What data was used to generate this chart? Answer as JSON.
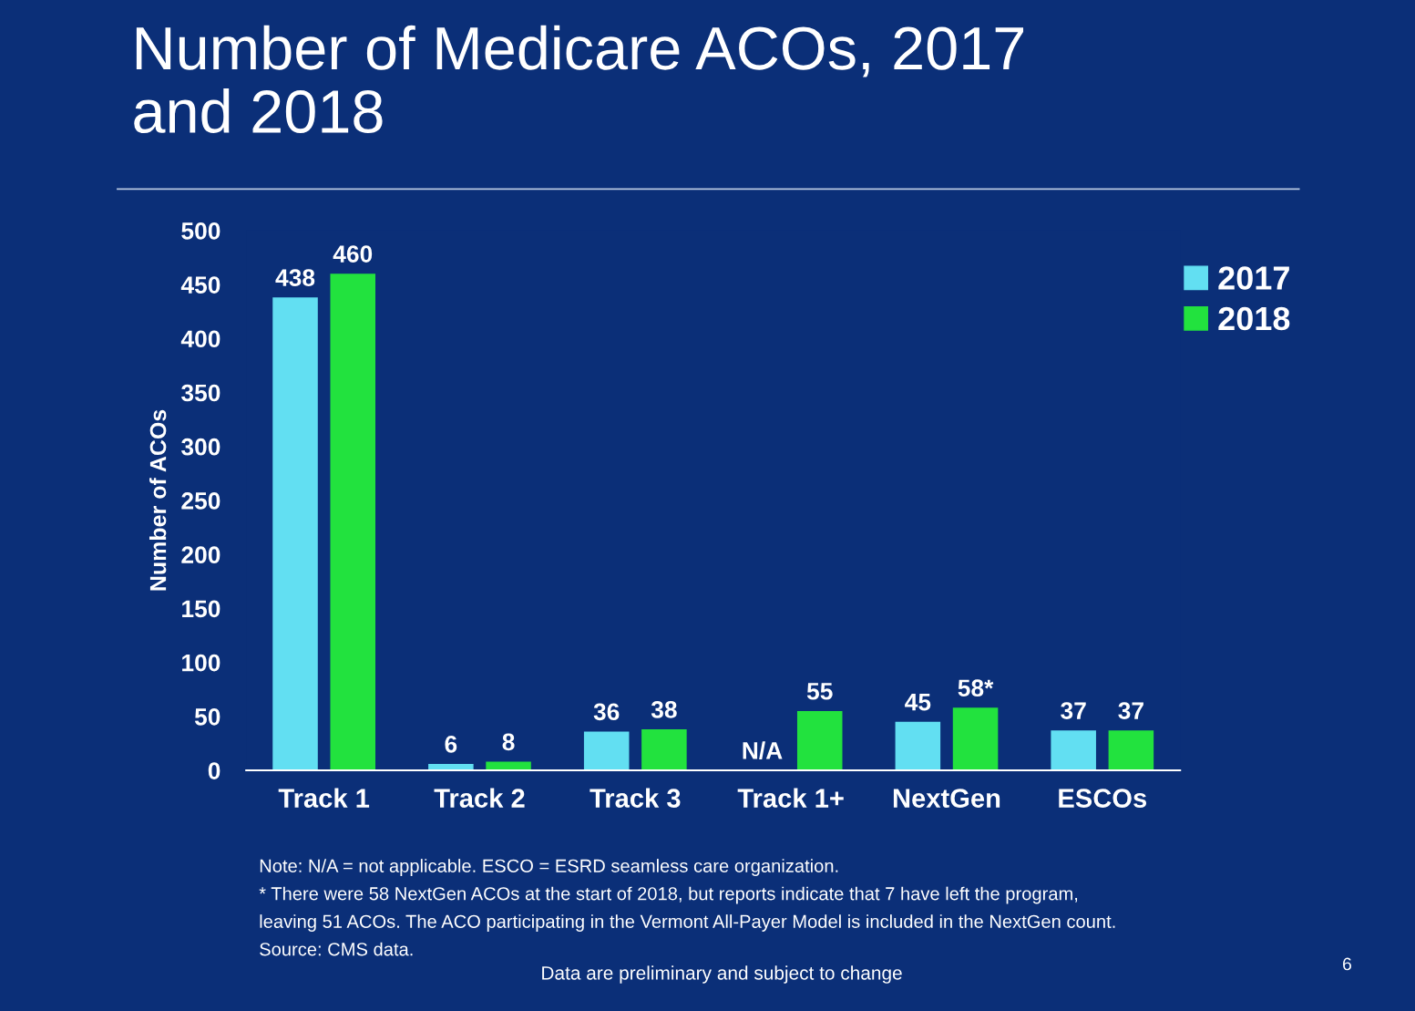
{
  "chart_data": {
    "type": "bar",
    "title": "Number of Medicare ACOs, 2017\nand 2018",
    "ylabel": "Number of ACOs",
    "categories": [
      "Track 1",
      "Track 2",
      "Track 3",
      "Track 1+",
      "NextGen",
      "ESCOs"
    ],
    "series": [
      {
        "name": "2017",
        "color": "#62dff2",
        "values": [
          438,
          6,
          36,
          null,
          45,
          37
        ],
        "value_labels": [
          "438",
          "6",
          "36",
          "N/A",
          "45",
          "37"
        ]
      },
      {
        "name": "2018",
        "color": "#22e23e",
        "values": [
          460,
          8,
          38,
          55,
          58,
          37
        ],
        "value_labels": [
          "460",
          "8",
          "38",
          "55",
          "58*",
          "37"
        ]
      }
    ],
    "ylim": [
      0,
      500
    ],
    "yticks": [
      0,
      50,
      100,
      150,
      200,
      250,
      300,
      350,
      400,
      450,
      500
    ],
    "grid": false,
    "legend": "top right",
    "annotations": [
      "Note: N/A = not applicable. ESCO = ESRD seamless care organization.",
      "* There were 58 NextGen ACOs at the start of 2018, but reports indicate that 7 have left the program,",
      "leaving 51 ACOs. The ACO participating in the Vermont All-Payer Model is included in the NextGen count.",
      "Source: CMS data.",
      "Data are preliminary and subject to change",
      "6"
    ]
  }
}
